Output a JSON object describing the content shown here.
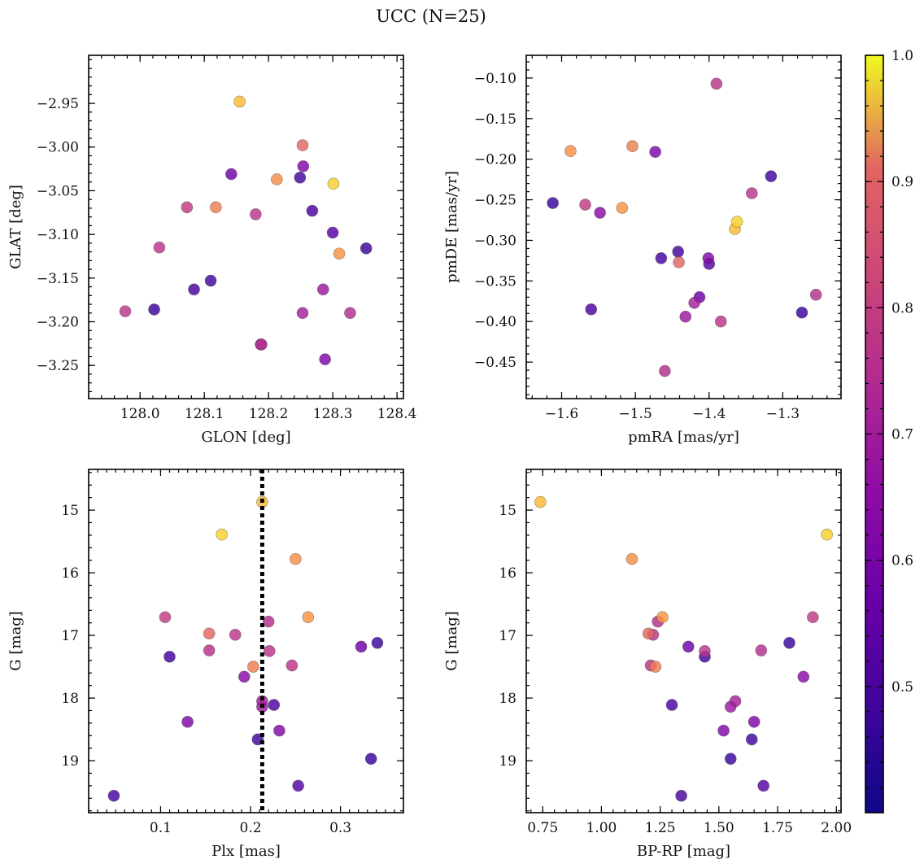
{
  "figure": {
    "title": "UCC (N=25)"
  },
  "colorbar": {
    "colormap": "plasma",
    "min": 0.4,
    "max": 1.0,
    "ticks": [
      0.5,
      0.6,
      0.7,
      0.8,
      0.9,
      1.0
    ],
    "tick_labels": [
      "0.5",
      "0.6",
      "0.7",
      "0.8",
      "0.9",
      "1.0"
    ]
  },
  "stars": [
    {
      "glon": 128.155,
      "glat": -2.948,
      "pmra": -1.365,
      "pmde": -0.286,
      "plx": 0.213,
      "g": 14.87,
      "bprp": 0.74,
      "prob": 0.97
    },
    {
      "glon": 128.301,
      "glat": -3.042,
      "pmra": -1.362,
      "pmde": -0.277,
      "plx": 0.168,
      "g": 15.39,
      "bprp": 1.96,
      "prob": 0.98
    },
    {
      "glon": 128.213,
      "glat": -3.037,
      "pmra": -1.588,
      "pmde": -0.19,
      "plx": 0.25,
      "g": 15.78,
      "bprp": 1.13,
      "prob": 0.93
    },
    {
      "glon": 128.31,
      "glat": -3.122,
      "pmra": -1.518,
      "pmde": -0.26,
      "plx": 0.264,
      "g": 16.71,
      "bprp": 1.26,
      "prob": 0.94
    },
    {
      "glon": 128.118,
      "glat": -3.069,
      "pmra": -1.504,
      "pmde": -0.184,
      "plx": 0.203,
      "g": 17.5,
      "bprp": 1.23,
      "prob": 0.9
    },
    {
      "glon": 128.253,
      "glat": -2.998,
      "pmra": -1.441,
      "pmde": -0.327,
      "plx": 0.154,
      "g": 16.97,
      "bprp": 1.2,
      "prob": 0.84
    },
    {
      "glon": 128.073,
      "glat": -3.069,
      "pmra": -1.568,
      "pmde": -0.256,
      "plx": 0.105,
      "g": 16.71,
      "bprp": 1.9,
      "prob": 0.72
    },
    {
      "glon": 128.03,
      "glat": -3.115,
      "pmra": -1.39,
      "pmde": -0.107,
      "plx": 0.183,
      "g": 16.99,
      "bprp": 1.22,
      "prob": 0.7
    },
    {
      "glon": 127.977,
      "glat": -3.188,
      "pmra": -1.384,
      "pmde": -0.4,
      "plx": 0.246,
      "g": 17.48,
      "bprp": 1.21,
      "prob": 0.7
    },
    {
      "glon": 128.18,
      "glat": -3.077,
      "pmra": -1.342,
      "pmde": -0.242,
      "plx": 0.221,
      "g": 17.25,
      "bprp": 1.44,
      "prob": 0.7
    },
    {
      "glon": 128.189,
      "glat": -3.226,
      "pmra": -1.255,
      "pmde": -0.367,
      "plx": 0.154,
      "g": 17.24,
      "bprp": 1.68,
      "prob": 0.69
    },
    {
      "glon": 128.327,
      "glat": -3.19,
      "pmra": -1.46,
      "pmde": -0.461,
      "plx": 0.22,
      "g": 16.78,
      "bprp": 1.24,
      "prob": 0.68
    },
    {
      "glon": 128.253,
      "glat": -3.19,
      "pmra": -1.42,
      "pmde": -0.377,
      "plx": 0.213,
      "g": 18.05,
      "bprp": 1.57,
      "prob": 0.64
    },
    {
      "glon": 128.285,
      "glat": -3.163,
      "pmra": -1.432,
      "pmde": -0.394,
      "plx": 0.213,
      "g": 18.14,
      "bprp": 1.55,
      "prob": 0.62
    },
    {
      "glon": 128.188,
      "glat": -3.226,
      "pmra": -1.548,
      "pmde": -0.266,
      "plx": 0.193,
      "g": 17.66,
      "bprp": 1.86,
      "prob": 0.58
    },
    {
      "glon": 128.254,
      "glat": -3.022,
      "pmra": -1.401,
      "pmde": -0.322,
      "plx": 0.232,
      "g": 18.52,
      "bprp": 1.52,
      "prob": 0.56
    },
    {
      "glon": 128.288,
      "glat": -3.243,
      "pmra": -1.473,
      "pmde": -0.191,
      "plx": 0.13,
      "g": 18.38,
      "bprp": 1.65,
      "prob": 0.55
    },
    {
      "glon": 128.142,
      "glat": -3.031,
      "pmra": -1.413,
      "pmde": -0.37,
      "plx": 0.323,
      "g": 17.18,
      "bprp": 1.37,
      "prob": 0.52
    },
    {
      "glon": 128.3,
      "glat": -3.098,
      "pmra": -1.4,
      "pmde": -0.329,
      "plx": 0.253,
      "g": 19.4,
      "bprp": 1.69,
      "prob": 0.47
    },
    {
      "glon": 128.268,
      "glat": -3.073,
      "pmra": -1.56,
      "pmde": -0.385,
      "plx": 0.226,
      "g": 18.11,
      "bprp": 1.3,
      "prob": 0.45
    },
    {
      "glon": 128.084,
      "glat": -3.163,
      "pmra": -1.442,
      "pmde": -0.314,
      "plx": 0.048,
      "g": 19.56,
      "bprp": 1.34,
      "prob": 0.44
    },
    {
      "glon": 128.11,
      "glat": -3.153,
      "pmra": -1.465,
      "pmde": -0.322,
      "plx": 0.11,
      "g": 17.34,
      "bprp": 1.44,
      "prob": 0.43
    },
    {
      "glon": 128.249,
      "glat": -3.035,
      "pmra": -1.316,
      "pmde": -0.221,
      "plx": 0.208,
      "g": 18.66,
      "bprp": 1.64,
      "prob": 0.43
    },
    {
      "glon": 128.022,
      "glat": -3.186,
      "pmra": -1.612,
      "pmde": -0.254,
      "plx": 0.334,
      "g": 18.97,
      "bprp": 1.55,
      "prob": 0.42
    },
    {
      "glon": 128.352,
      "glat": -3.116,
      "pmra": -1.274,
      "pmde": -0.389,
      "plx": 0.341,
      "g": 17.12,
      "bprp": 1.8,
      "prob": 0.42
    }
  ],
  "chart_data": [
    {
      "type": "scatter",
      "xlabel": "GLON [deg]",
      "ylabel": "GLAT [deg]",
      "x_field": "glon",
      "y_field": "glat",
      "xlim": [
        127.92,
        128.41
      ],
      "ylim": [
        -3.288,
        -2.895
      ],
      "x_ticks": [
        128.0,
        128.1,
        128.2,
        128.3,
        128.4
      ],
      "x_tick_labels": [
        "128.0",
        "128.1",
        "128.2",
        "128.3",
        "128.4"
      ],
      "y_ticks": [
        -2.95,
        -3.0,
        -3.05,
        -3.1,
        -3.15,
        -3.2,
        -3.25
      ],
      "y_tick_labels": [
        "−2.95",
        "−3.00",
        "−3.05",
        "−3.10",
        "−3.15",
        "−3.20",
        "−3.25"
      ],
      "x_minor": 0.02,
      "y_minor": 0.01,
      "invert_y": false
    },
    {
      "type": "scatter",
      "xlabel": "pmRA [mas/yr]",
      "ylabel": "pmDE [mas/yr]",
      "x_field": "pmra",
      "y_field": "pmde",
      "xlim": [
        -1.648,
        -1.221
      ],
      "ylim": [
        -0.495,
        -0.072
      ],
      "x_ticks": [
        -1.6,
        -1.5,
        -1.4,
        -1.3
      ],
      "x_tick_labels": [
        "−1.6",
        "−1.5",
        "−1.4",
        "−1.3"
      ],
      "y_ticks": [
        -0.1,
        -0.15,
        -0.2,
        -0.25,
        -0.3,
        -0.35,
        -0.4,
        -0.45
      ],
      "y_tick_labels": [
        "−0.10",
        "−0.15",
        "−0.20",
        "−0.25",
        "−0.30",
        "−0.35",
        "−0.40",
        "−0.45"
      ],
      "x_minor": 0.02,
      "y_minor": 0.01,
      "invert_y": false
    },
    {
      "type": "scatter",
      "xlabel": "Plx [mas]",
      "ylabel": "G [mag]",
      "x_field": "plx",
      "y_field": "g",
      "xlim": [
        0.02,
        0.37
      ],
      "ylim": [
        14.35,
        19.83
      ],
      "x_ticks": [
        0.1,
        0.2,
        0.3
      ],
      "x_tick_labels": [
        "0.1",
        "0.2",
        "0.3"
      ],
      "y_ticks": [
        15,
        16,
        17,
        18,
        19
      ],
      "y_tick_labels": [
        "15",
        "16",
        "17",
        "18",
        "19"
      ],
      "x_minor": 0.01,
      "y_minor": 0.2,
      "invert_y": true,
      "vline": 0.213
    },
    {
      "type": "scatter",
      "xlabel": "BP-RP [mag]",
      "ylabel": "G [mag]",
      "x_field": "bprp",
      "y_field": "g",
      "xlim": [
        0.68,
        2.02
      ],
      "ylim": [
        14.35,
        19.83
      ],
      "x_ticks": [
        0.75,
        1.0,
        1.25,
        1.5,
        1.75,
        2.0
      ],
      "x_tick_labels": [
        "0.75",
        "1.00",
        "1.25",
        "1.50",
        "1.75",
        "2.00"
      ],
      "y_ticks": [
        15,
        16,
        17,
        18,
        19
      ],
      "y_tick_labels": [
        "15",
        "16",
        "17",
        "18",
        "19"
      ],
      "x_minor": 0.05,
      "y_minor": 0.2,
      "invert_y": true
    }
  ]
}
